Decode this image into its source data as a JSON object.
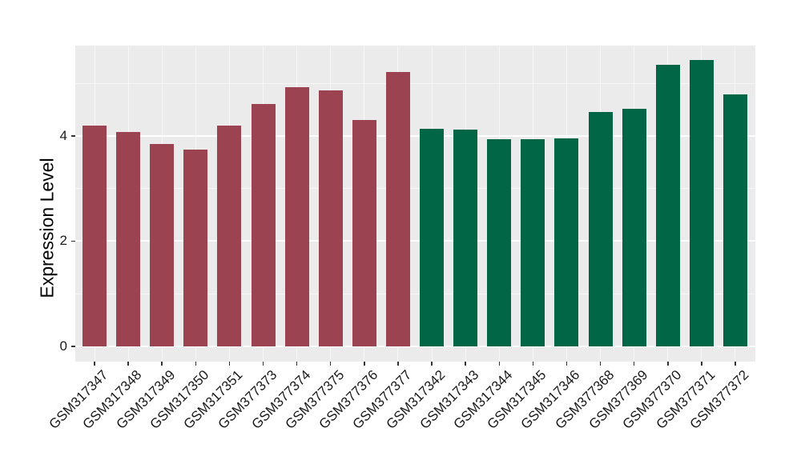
{
  "chart_data": {
    "type": "bar",
    "title": "",
    "xlabel": "",
    "ylabel": "Expression Level",
    "categories": [
      "GSM317347",
      "GSM317348",
      "GSM317349",
      "GSM317350",
      "GSM317351",
      "GSM377373",
      "GSM377374",
      "GSM377375",
      "GSM377376",
      "GSM377377",
      "GSM317342",
      "GSM317343",
      "GSM317344",
      "GSM317345",
      "GSM317346",
      "GSM377368",
      "GSM377369",
      "GSM377370",
      "GSM377371",
      "GSM377372"
    ],
    "values": [
      4.19,
      4.07,
      3.84,
      3.74,
      4.19,
      4.6,
      4.92,
      4.86,
      4.3,
      5.21,
      4.13,
      4.12,
      3.94,
      3.94,
      3.95,
      4.45,
      4.52,
      5.35,
      5.44,
      4.79
    ],
    "bar_colors": [
      "#9B4351",
      "#9B4351",
      "#9B4351",
      "#9B4351",
      "#9B4351",
      "#9B4351",
      "#9B4351",
      "#9B4351",
      "#9B4351",
      "#9B4351",
      "#006646",
      "#006646",
      "#006646",
      "#006646",
      "#006646",
      "#006646",
      "#006646",
      "#006646",
      "#006646",
      "#006646"
    ],
    "groups": [
      {
        "color": "#9B4351",
        "members": [
          "GSM317347",
          "GSM317348",
          "GSM317349",
          "GSM317350",
          "GSM317351",
          "GSM377373",
          "GSM377374",
          "GSM377375",
          "GSM377376",
          "GSM377377"
        ]
      },
      {
        "color": "#006646",
        "members": [
          "GSM317342",
          "GSM317343",
          "GSM317344",
          "GSM317345",
          "GSM317346",
          "GSM377368",
          "GSM377369",
          "GSM377370",
          "GSM377371",
          "GSM377372"
        ]
      }
    ],
    "yticks": [
      0,
      2,
      4
    ],
    "yticks_minor": [
      1,
      3,
      5
    ],
    "ylim": [
      0,
      5.71
    ],
    "grid": true,
    "legend": "none",
    "panel_background": "#EBEBEB",
    "gridline_color": "#FFFFFF",
    "text_color": "#1A1A1A"
  }
}
